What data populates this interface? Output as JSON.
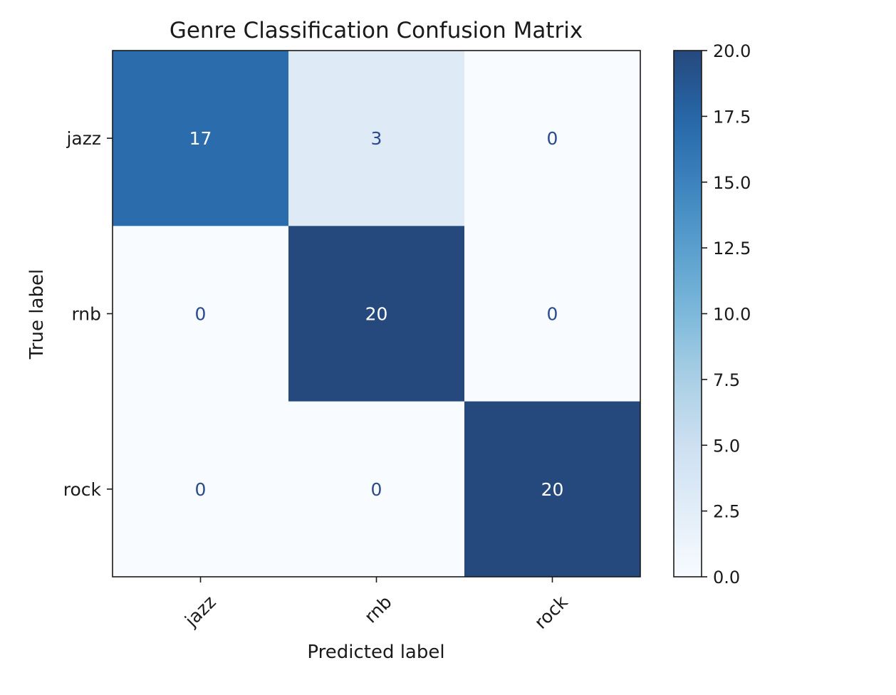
{
  "chart_data": {
    "type": "heatmap",
    "title": "Genre Classification Confusion Matrix",
    "xlabel": "Predicted label",
    "ylabel": "True label",
    "x_categories": [
      "jazz",
      "rnb",
      "rock"
    ],
    "y_categories": [
      "jazz",
      "rnb",
      "rock"
    ],
    "values": [
      [
        17,
        3,
        0
      ],
      [
        0,
        20,
        0
      ],
      [
        0,
        0,
        20
      ]
    ],
    "colormap": "Blues",
    "color_range": [
      0,
      20
    ],
    "colorbar": {
      "ticks": [
        0.0,
        2.5,
        5.0,
        7.5,
        10.0,
        12.5,
        15.0,
        17.5,
        20.0
      ],
      "tick_labels": [
        "0.0",
        "2.5",
        "5.0",
        "7.5",
        "10.0",
        "12.5",
        "15.0",
        "17.5",
        "20.0"
      ]
    },
    "cell_text_colors": {
      "light": "#ffffff",
      "dark": "#2a4b8d"
    },
    "x_tick_rotation_deg": 45
  }
}
